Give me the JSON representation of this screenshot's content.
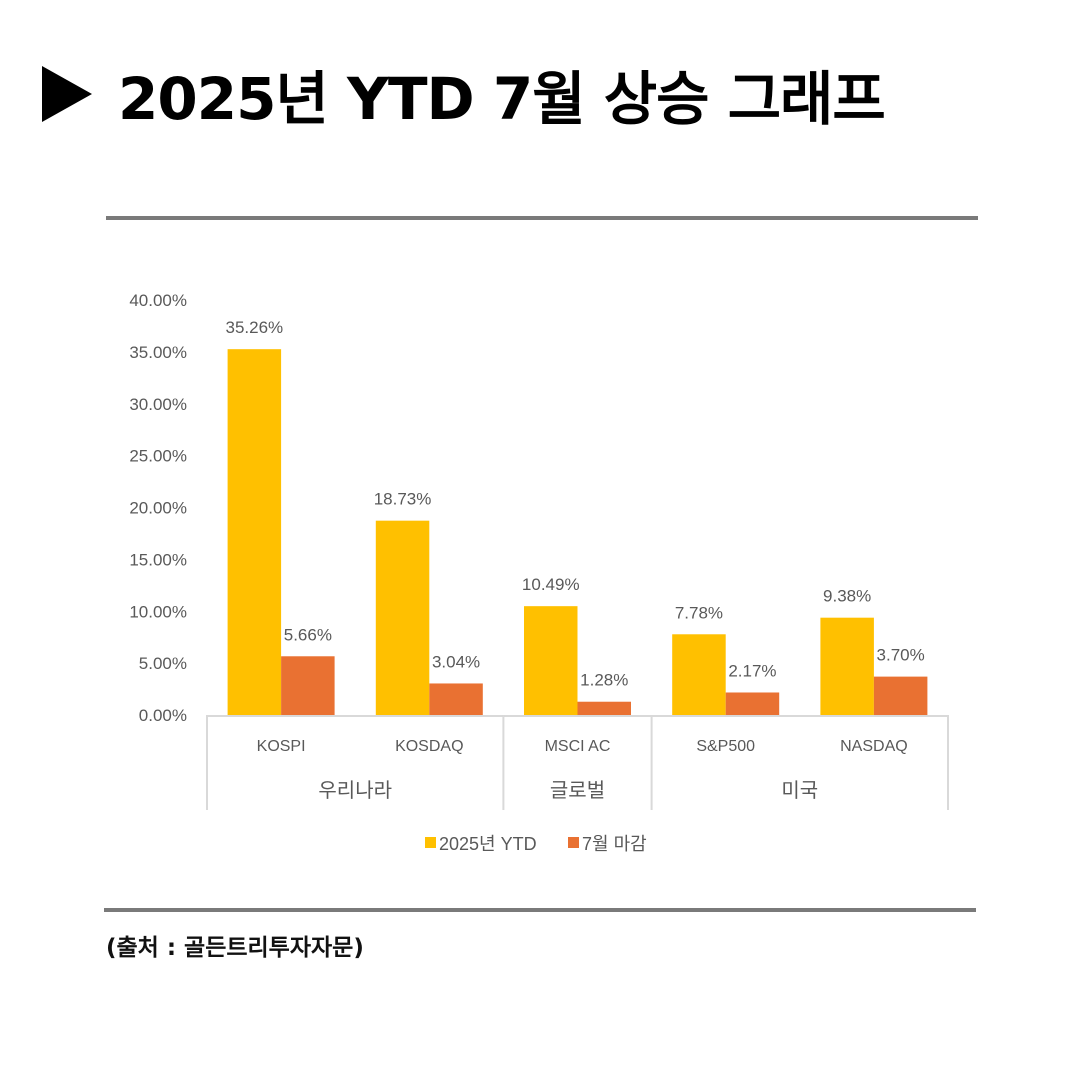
{
  "header": {
    "title": "2025년 YTD 7월 상승 그래프",
    "icon": "play-triangle-icon"
  },
  "source": "(출처 : 골든트리투자자문)",
  "chart_data": {
    "type": "bar",
    "title": "",
    "categories": [
      "KOSPI",
      "KOSDAQ",
      "MSCI AC",
      "S&P500",
      "NASDAQ"
    ],
    "groups": [
      {
        "label": "우리나라",
        "span": 2
      },
      {
        "label": "글로벌",
        "span": 1
      },
      {
        "label": "미국",
        "span": 2
      }
    ],
    "series": [
      {
        "name": "2025년 YTD",
        "color": "#FFC000",
        "values": [
          35.26,
          18.73,
          10.49,
          7.78,
          9.38
        ],
        "labels": [
          "35.26%",
          "18.73%",
          "10.49%",
          "7.78%",
          "9.38%"
        ]
      },
      {
        "name": "7월 마감",
        "color": "#E97132",
        "values": [
          5.66,
          3.04,
          1.28,
          2.17,
          3.7
        ],
        "labels": [
          "5.66%",
          "3.04%",
          "1.28%",
          "2.17%",
          "3.70%"
        ]
      }
    ],
    "ylim": [
      0,
      40
    ],
    "yticks": [
      "0.00%",
      "5.00%",
      "10.00%",
      "15.00%",
      "20.00%",
      "25.00%",
      "30.00%",
      "35.00%",
      "40.00%"
    ],
    "grid": false,
    "legend": "bottom"
  }
}
